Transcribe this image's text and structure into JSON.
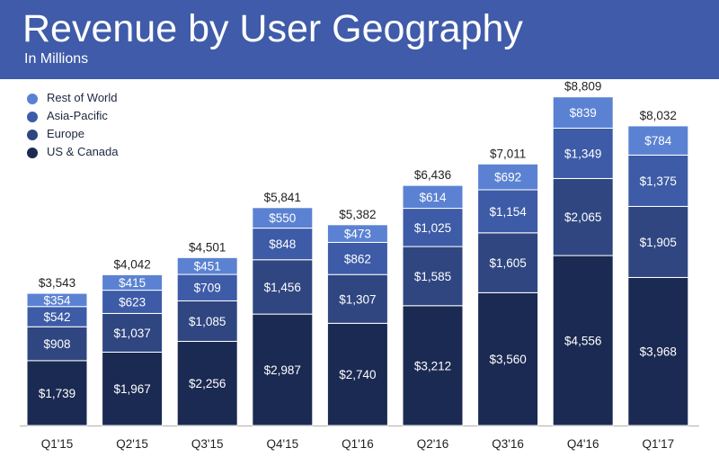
{
  "header": {
    "title": "Revenue by User Geography",
    "subtitle": "In Millions"
  },
  "chart_data": {
    "type": "bar",
    "stacked": true,
    "title": "Revenue by User Geography",
    "subtitle": "In Millions",
    "categories": [
      "Q1'15",
      "Q2'15",
      "Q3'15",
      "Q4'15",
      "Q1'16",
      "Q2'16",
      "Q3'16",
      "Q4'16",
      "Q1'17"
    ],
    "series": [
      {
        "name": "US & Canada",
        "color": "#1b2a52",
        "values": [
          1739,
          1967,
          2256,
          2987,
          2740,
          3212,
          3560,
          4556,
          3968
        ]
      },
      {
        "name": "Europe",
        "color": "#2f4680",
        "values": [
          908,
          1037,
          1085,
          1456,
          1307,
          1585,
          1605,
          2065,
          1905
        ]
      },
      {
        "name": "Asia-Pacific",
        "color": "#3d5ba6",
        "values": [
          542,
          623,
          709,
          848,
          862,
          1025,
          1154,
          1349,
          1375
        ]
      },
      {
        "name": "Rest of World",
        "color": "#5b82d2",
        "values": [
          354,
          415,
          451,
          550,
          473,
          614,
          692,
          839,
          784
        ]
      }
    ],
    "value_labels": [
      [
        "$1,739",
        "$1,967",
        "$2,256",
        "$2,987",
        "$2,740",
        "$3,212",
        "$3,560",
        "$4,556",
        "$3,968"
      ],
      [
        "$908",
        "$1,037",
        "$1,085",
        "$1,456",
        "$1,307",
        "$1,585",
        "$1,605",
        "$2,065",
        "$1,905"
      ],
      [
        "$542",
        "$623",
        "$709",
        "$848",
        "$862",
        "$1,025",
        "$1,154",
        "$1,349",
        "$1,375"
      ],
      [
        "$354",
        "$415",
        "$451",
        "$550",
        "$473",
        "$614",
        "$692",
        "$839",
        "$784"
      ]
    ],
    "totals": [
      3543,
      4042,
      4501,
      5841,
      5382,
      6436,
      7011,
      8809,
      8032
    ],
    "total_labels": [
      "$3,543",
      "$4,042",
      "$4,501",
      "$5,841",
      "$5,382",
      "$6,436",
      "$7,011",
      "$8,809",
      "$8,032"
    ],
    "legend": {
      "placement": "top-left",
      "entries": [
        "Rest of World",
        "Asia-Pacific",
        "Europe",
        "US & Canada"
      ]
    },
    "ylim": [
      0,
      9000
    ],
    "grid": false,
    "xlabel": "",
    "ylabel": ""
  }
}
